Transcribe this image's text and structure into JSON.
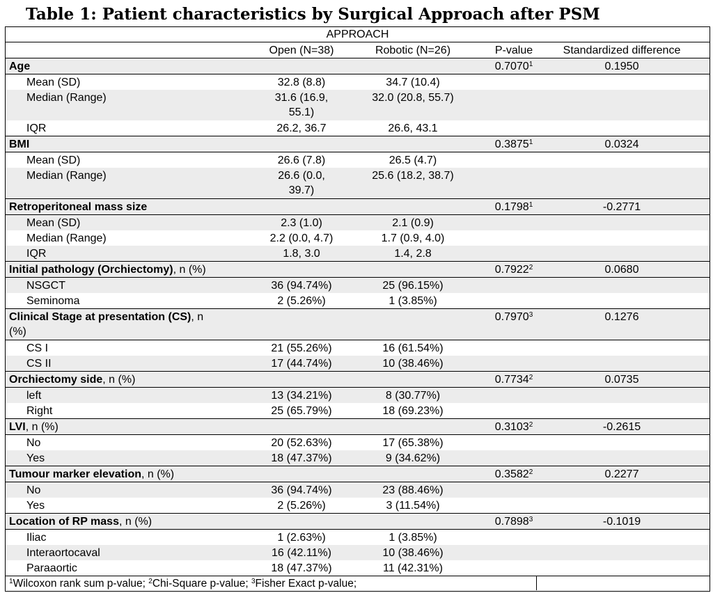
{
  "title": "Table 1: Patient characteristics by Surgical Approach after PSM",
  "header": {
    "group": "APPROACH",
    "open": "Open (N=38)",
    "robotic": "Robotic (N=26)",
    "pvalue": "P-value",
    "stddiff": "Standardized difference"
  },
  "rows": [
    {
      "label": "Age",
      "pv": "0.7070",
      "sup": "1",
      "sd": "0.1950"
    },
    {
      "label": "Mean (SD)",
      "open": "32.8 (8.8)",
      "rob": "34.7 (10.4)"
    },
    {
      "label": "Median (Range)",
      "open": "31.6 (16.9,",
      "open2": "55.1)",
      "rob": "32.0 (20.8, 55.7)"
    },
    {
      "label": "IQR",
      "open": "26.2, 36.7",
      "rob": "26.6, 43.1"
    },
    {
      "label": "BMI",
      "pv": "0.3875",
      "sup": "1",
      "sd": "0.0324"
    },
    {
      "label": "Mean (SD)",
      "open": "26.6 (7.8)",
      "rob": "26.5 (4.7)"
    },
    {
      "label": "Median (Range)",
      "open": "26.6 (0.0,",
      "open2": "39.7)",
      "rob": "25.6 (18.2, 38.7)"
    },
    {
      "label": "Retroperitoneal mass size",
      "pv": "0.1798",
      "sup": "1",
      "sd": "-0.2771"
    },
    {
      "label": "Mean (SD)",
      "open": "2.3 (1.0)",
      "rob": "2.1 (0.9)"
    },
    {
      "label": "Median (Range)",
      "open": "2.2 (0.0, 4.7)",
      "rob": "1.7 (0.9, 4.0)"
    },
    {
      "label": "IQR",
      "open": "1.8, 3.0",
      "rob": "1.4, 2.8"
    },
    {
      "label": "Initial pathology (Orchiectomy)",
      "suffix": ", n (%)",
      "pv": "0.7922",
      "sup": "2",
      "sd": "0.0680"
    },
    {
      "label": "NSGCT",
      "open": "36 (94.74%)",
      "rob": "25 (96.15%)"
    },
    {
      "label": "Seminoma",
      "open": "2 (5.26%)",
      "rob": "1 (3.85%)"
    },
    {
      "label": "Clinical Stage at presentation (CS)",
      "suffix": ", n",
      "suffix2": "(%)",
      "pv": "0.7970",
      "sup": "3",
      "sd": "0.1276"
    },
    {
      "label": "CS I",
      "open": "21 (55.26%)",
      "rob": "16 (61.54%)"
    },
    {
      "label": "CS II",
      "open": "17 (44.74%)",
      "rob": "10 (38.46%)"
    },
    {
      "label": "Orchiectomy side",
      "suffix": ", n (%)",
      "pv": "0.7734",
      "sup": "2",
      "sd": "0.0735"
    },
    {
      "label": "left",
      "open": "13 (34.21%)",
      "rob": "8 (30.77%)"
    },
    {
      "label": "Right",
      "open": "25 (65.79%)",
      "rob": "18 (69.23%)"
    },
    {
      "label": "LVI",
      "suffix": ", n (%)",
      "pv": "0.3103",
      "sup": "2",
      "sd": "-0.2615"
    },
    {
      "label": "No",
      "open": "20 (52.63%)",
      "rob": "17 (65.38%)"
    },
    {
      "label": "Yes",
      "open": "18 (47.37%)",
      "rob": "9 (34.62%)"
    },
    {
      "label": "Tumour marker elevation",
      "suffix": ", n (%)",
      "pv": "0.3582",
      "sup": "2",
      "sd": "0.2277"
    },
    {
      "label": "No",
      "open": "36 (94.74%)",
      "rob": "23 (88.46%)"
    },
    {
      "label": "Yes",
      "open": "2 (5.26%)",
      "rob": "3 (11.54%)"
    },
    {
      "label": "Location of RP mass",
      "suffix": ", n (%)",
      "pv": "0.7898",
      "sup": "3",
      "sd": "-0.1019"
    },
    {
      "label": "Iliac",
      "open": "1 (2.63%)",
      "rob": "1 (3.85%)"
    },
    {
      "label": "Interaortocaval",
      "open": "16 (42.11%)",
      "rob": "10 (38.46%)"
    },
    {
      "label": "Paraaortic",
      "open": "18 (47.37%)",
      "rob": "11 (42.31%)"
    }
  ],
  "footnote": {
    "s1": "1",
    "t1": "Wilcoxon rank sum p-value; ",
    "s2": "2",
    "t2": "Chi-Square p-value; ",
    "s3": "3",
    "t3": "Fisher Exact p-value;"
  }
}
